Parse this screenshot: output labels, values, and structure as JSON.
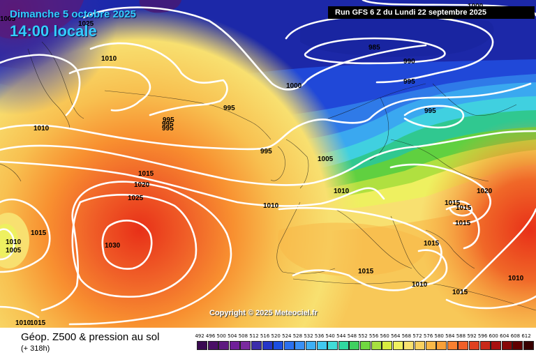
{
  "header": {
    "date": "Dimanche 5 octobre 2025",
    "time": "14:00 locale",
    "run": "Run GFS 6 Z du Lundi 22 septembre 2025"
  },
  "copyright": "Copyright © 2025 Meteociel.fr",
  "footer": {
    "title": "Géop. Z500 & pression au sol",
    "subtitle": "(+ 318h)"
  },
  "pressure_labels": [
    "1005",
    "1025",
    "1010",
    "1000",
    "985",
    "990",
    "995",
    "1000",
    "995",
    "995",
    "995",
    "995",
    "1010",
    "995",
    "1005",
    "995",
    "1015",
    "1020",
    "1025",
    "1010",
    "1010",
    "1020",
    "1015",
    "1015",
    "1030",
    "1015",
    "1010",
    "1005",
    "1015",
    "1015",
    "1010",
    "1010",
    "1015",
    "1015",
    "1010",
    "1015"
  ],
  "legend": {
    "levels": [
      "492",
      "496",
      "500",
      "504",
      "508",
      "512",
      "516",
      "520",
      "524",
      "528",
      "532",
      "536",
      "540",
      "544",
      "548",
      "552",
      "556",
      "560",
      "564",
      "568",
      "572",
      "576",
      "580",
      "584",
      "588",
      "592",
      "596",
      "600",
      "604",
      "608",
      "612"
    ],
    "colors": [
      "#3a0a52",
      "#4a0f66",
      "#5e1a80",
      "#701f99",
      "#7a2a9e",
      "#3b2eaa",
      "#2536c8",
      "#1c4ee0",
      "#2b70ee",
      "#3a90f5",
      "#3fb0f5",
      "#40c8f0",
      "#40dcd8",
      "#30d8a0",
      "#40d060",
      "#70d840",
      "#a8e040",
      "#d8ec40",
      "#f0f060",
      "#f8e070",
      "#f8d060",
      "#f8b848",
      "#f8a038",
      "#f88030",
      "#f06028",
      "#e04020",
      "#c82818",
      "#a81010",
      "#880808",
      "#600000",
      "#380000"
    ]
  }
}
